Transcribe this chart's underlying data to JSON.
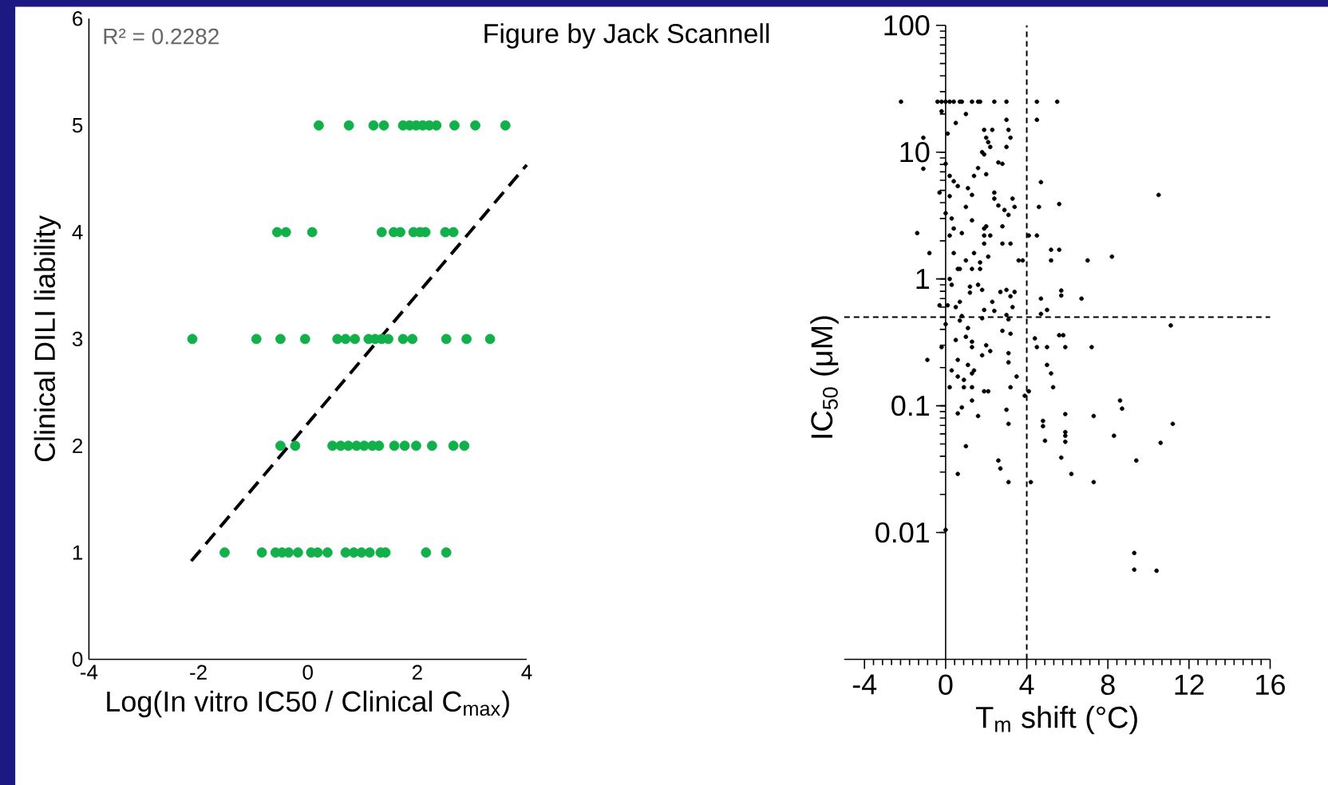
{
  "chart_data": [
    {
      "type": "scatter",
      "xlabel": "Log(In vitro IC50 / Clinical C$_{max}$)",
      "ylabel": "Clinical DILI liability",
      "xlim": [
        -4,
        4
      ],
      "ylim": [
        0,
        6
      ],
      "xticks": [
        -4,
        -2,
        0,
        2,
        4
      ],
      "yticks": [
        0,
        1,
        2,
        3,
        4,
        5,
        6
      ],
      "marker": "circle",
      "annotations": [
        "R² = 0.2282",
        "Figure by Jack Scannell"
      ],
      "series": [
        {
          "color": "#12b04a",
          "x": [
            0.2,
            0.75,
            1.2,
            1.39,
            1.74,
            1.86,
            1.98,
            2.1,
            2.22,
            2.35,
            2.68,
            3.06,
            3.61,
            -0.56,
            -0.4,
            0.08,
            1.35,
            1.57,
            1.69,
            1.93,
            2.05,
            2.15,
            2.51,
            2.66,
            -2.11,
            -0.94,
            -0.5,
            -0.05,
            0.54,
            0.69,
            0.86,
            1.11,
            1.23,
            1.35,
            1.47,
            1.74,
            1.91,
            2.53,
            2.9,
            3.33,
            -0.5,
            -0.23,
            0.45,
            0.6,
            0.74,
            0.89,
            1.03,
            1.18,
            1.3,
            1.58,
            1.77,
            1.98,
            2.27,
            2.66,
            2.86,
            -1.52,
            -0.84,
            -0.59,
            -0.47,
            -0.35,
            -0.18,
            0.06,
            0.18,
            0.36,
            0.69,
            0.84,
            0.98,
            1.13,
            1.33,
            1.42,
            2.16,
            2.53
          ],
          "values": [
            5,
            5,
            5,
            5,
            5,
            5,
            5,
            5,
            5,
            5,
            5,
            5,
            5,
            4,
            4,
            4,
            4,
            4,
            4,
            4,
            4,
            4,
            4,
            4,
            3,
            3,
            3,
            3,
            3,
            3,
            3,
            3,
            3,
            3,
            3,
            3,
            3,
            3,
            3,
            3,
            2,
            2,
            2,
            2,
            2,
            2,
            2,
            2,
            2,
            2,
            2,
            2,
            2,
            2,
            2,
            1,
            1,
            1,
            1,
            1,
            1,
            1,
            1,
            1,
            1,
            1,
            1,
            1,
            1,
            1,
            1,
            1
          ]
        },
        {
          "type": "line",
          "color": "#000000",
          "marker": "none",
          "line_style": "dashed",
          "x": [
            -2.13,
            4
          ],
          "values": [
            0.92,
            4.63
          ]
        }
      ]
    },
    {
      "type": "scatter",
      "xlabel": "T$_{m}$ shift (°C)",
      "ylabel": "IC$_{50}$ (μM)",
      "log": "y",
      "xlim": [
        -5,
        16
      ],
      "ylim": [
        0.001,
        100
      ],
      "xticks": [
        -4,
        0,
        4,
        8,
        12,
        16
      ],
      "yticks": [
        0.01,
        0.1,
        1,
        10,
        100
      ],
      "marker": "circle",
      "ref_lines": [
        {
          "axis": "x",
          "value": 4,
          "color": "#000000",
          "line_style": "dashed"
        },
        {
          "axis": "y",
          "value": 0.5,
          "color": "#000000",
          "line_style": "dashed"
        }
      ],
      "series": [
        {
          "color": "#000000",
          "x": [
            -2.2,
            -0.4,
            -0.2,
            0,
            0.2,
            0.4,
            0.7,
            0.8,
            1.3,
            1.6,
            1.7,
            2.4,
            3.0,
            4.5,
            5.5,
            -0.2,
            1.0,
            3.0,
            4.5,
            0.5,
            1.9,
            2.3,
            3.1,
            0.1,
            -1.1,
            2.0,
            3.2,
            2.1,
            2.2,
            3.0,
            1.8,
            1.9,
            0,
            2.6,
            2.8,
            -1.1,
            1.6,
            1.4,
            2.0,
            0.2,
            0.4,
            0.6,
            1.1,
            1.3,
            4.7,
            10.5,
            -0.3,
            0.2,
            2.4,
            2.4,
            3.3,
            1.0,
            2.6,
            2.9,
            3.4,
            4.6,
            5.6,
            0,
            3.1,
            1.3,
            0.3,
            -1.4,
            0.4,
            0.8,
            1.9,
            2.0,
            2.8,
            0.2,
            1.9,
            2.2,
            4.1,
            4.5,
            1.9,
            2.8,
            3.2,
            -0.8,
            0.4,
            1.4,
            2.1,
            5.2,
            5.6,
            8.2,
            7.0,
            1.0,
            1.7,
            3.6,
            5.2,
            3.8,
            0.6,
            0.7,
            1.3,
            1.7,
            0.2,
            0.3,
            1.2,
            1.6,
            1.8,
            1.2,
            2.7,
            3.0,
            3.4,
            3.2,
            4.7,
            5.7,
            5.7,
            6.7,
            -0.3,
            0.1,
            0.7,
            0.5,
            2.3,
            1.9,
            2.4,
            3.3,
            4.7,
            5.0,
            0.8,
            0.7,
            1.8,
            3.0,
            3.1,
            0,
            11.1,
            1.1,
            2.8,
            3.2,
            0.5,
            1.0,
            4.4,
            5.6,
            5.8,
            1.3,
            1.3,
            2.0,
            2.2,
            -0.2,
            1.8,
            3.1,
            3.1,
            4.5,
            5.0,
            5.9,
            7.2,
            -0.9,
            0.6,
            1.1,
            0.3,
            0.6,
            1.3,
            1.4,
            5.0,
            5.2,
            0.9,
            3.5,
            0.2,
            0.9,
            1.3,
            1.9,
            2.1,
            3.2,
            5.3,
            3.9,
            4.1,
            1.3,
            8.6,
            8.7,
            0.8,
            3.0,
            0.6,
            1.6,
            3.1,
            5.9,
            7.3,
            4.8,
            4.8,
            4.9,
            5.9,
            5.9,
            5.9,
            11.2,
            8.3,
            10.6,
            1.0,
            5.7,
            9.4,
            2.6,
            2.7,
            0.6,
            6.2,
            3.1,
            4.2,
            7.3,
            0,
            9.3,
            9.3,
            10.4
          ],
          "values": [
            25,
            25,
            25,
            25,
            25,
            25,
            25,
            25,
            25,
            25,
            25,
            25,
            25,
            25,
            25,
            21,
            20,
            18,
            18,
            17,
            15,
            15,
            15,
            14,
            13,
            13,
            13,
            12,
            11,
            11,
            10,
            9.6,
            8.1,
            8.3,
            8.1,
            7.4,
            7.5,
            6.5,
            6.7,
            6.5,
            5.9,
            5.4,
            5.2,
            4.6,
            5.8,
            4.6,
            4.8,
            4.5,
            4.8,
            4.3,
            4.3,
            3.7,
            3.8,
            3.5,
            3.7,
            3.7,
            3.9,
            3.3,
            3.2,
            2.9,
            3.0,
            2.3,
            2.5,
            2.3,
            2.5,
            2.6,
            2.6,
            2.2,
            2.2,
            2.2,
            2.2,
            2.2,
            1.9,
            1.9,
            1.9,
            1.6,
            1.6,
            1.6,
            1.5,
            1.7,
            1.7,
            1.5,
            1.4,
            1.4,
            1.35,
            1.4,
            1.4,
            1.4,
            1.2,
            1.2,
            1.2,
            1.2,
            1.0,
            0.9,
            0.87,
            0.9,
            0.82,
            0.78,
            0.79,
            0.82,
            0.79,
            0.73,
            0.7,
            0.81,
            0.74,
            0.7,
            0.62,
            0.62,
            0.66,
            0.6,
            0.66,
            0.57,
            0.56,
            0.6,
            0.53,
            0.57,
            0.51,
            0.47,
            0.49,
            0.52,
            0.48,
            0.44,
            0.43,
            0.41,
            0.39,
            0.37,
            0.33,
            0.35,
            0.34,
            0.36,
            0.36,
            0.32,
            0.29,
            0.3,
            0.27,
            0.29,
            0.25,
            0.26,
            0.22,
            0.29,
            0.29,
            0.29,
            0.29,
            0.23,
            0.23,
            0.21,
            0.19,
            0.17,
            0.18,
            0.19,
            0.21,
            0.18,
            0.16,
            0.17,
            0.14,
            0.14,
            0.14,
            0.13,
            0.13,
            0.14,
            0.14,
            0.12,
            0.13,
            0.11,
            0.11,
            0.095,
            0.097,
            0.093,
            0.087,
            0.083,
            0.072,
            0.086,
            0.083,
            0.076,
            0.069,
            0.053,
            0.062,
            0.058,
            0.052,
            0.072,
            0.058,
            0.051,
            0.048,
            0.039,
            0.037,
            0.037,
            0.032,
            0.029,
            0.029,
            0.025,
            0.025,
            0.025,
            0.0105,
            0.0069,
            0.0051,
            0.005
          ]
        }
      ]
    }
  ]
}
